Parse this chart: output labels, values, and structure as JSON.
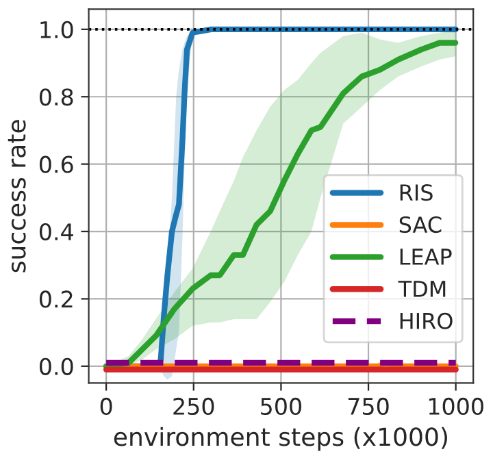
{
  "chart_data": {
    "type": "line",
    "xlabel": "environment steps (x1000)",
    "ylabel": "success rate",
    "xlim": [
      -50,
      1050
    ],
    "ylim": [
      -0.05,
      1.06
    ],
    "xticks": [
      0,
      250,
      500,
      750,
      1000
    ],
    "yticks": [
      {
        "value": 0,
        "label": "0.0"
      },
      {
        "value": 0.2,
        "label": "0.2"
      },
      {
        "value": 0.4,
        "label": "0.4"
      },
      {
        "value": 0.6,
        "label": "0.6"
      },
      {
        "value": 0.8,
        "label": "0.8"
      },
      {
        "value": 1.0,
        "label": "1.0"
      }
    ],
    "grid": true,
    "legend": "bottom right",
    "marker": "none",
    "ref_lines": [
      {
        "axis": "y",
        "value": 1.0,
        "color": "#000000",
        "line_style": "dotted"
      }
    ],
    "series": [
      {
        "name": "RIS",
        "color": "#1f77b4",
        "line_style": "solid",
        "x": [
          0,
          150,
          156,
          165,
          175,
          188,
          200,
          208,
          218,
          224,
          231,
          247,
          300,
          500,
          750,
          1000
        ],
        "values": [
          0,
          0,
          0.02,
          0.15,
          0.27,
          0.4,
          0.45,
          0.48,
          0.67,
          0.81,
          0.94,
          0.99,
          1.0,
          1.0,
          1.0,
          1.0
        ],
        "lower": [
          0,
          0,
          -0.01,
          -0.03,
          -0.04,
          -0.03,
          0.05,
          0.1,
          0.38,
          0.6,
          0.81,
          0.99,
          1.0,
          1.0,
          1.0,
          0.99
        ],
        "upper": [
          0,
          0,
          0.08,
          0.2,
          0.3,
          0.5,
          0.8,
          0.88,
          0.94,
          0.96,
          0.98,
          1.0,
          1.0,
          1.0,
          1.0,
          1.0
        ]
      },
      {
        "name": "SAC",
        "color": "#ff7f0e",
        "line_style": "solid",
        "x": [
          0,
          780,
          800,
          820,
          1000
        ],
        "values": [
          0,
          0,
          0.01,
          0,
          0
        ]
      },
      {
        "name": "LEAP",
        "color": "#2ca02c",
        "line_style": "solid",
        "x": [
          0,
          64,
          103,
          142,
          195,
          247,
          299,
          325,
          365,
          391,
          430,
          469,
          509,
          548,
          587,
          613,
          678,
          731,
          783,
          835,
          901,
          954,
          999
        ],
        "values": [
          0,
          0.01,
          0.05,
          0.09,
          0.17,
          0.23,
          0.27,
          0.27,
          0.33,
          0.33,
          0.42,
          0.46,
          0.55,
          0.63,
          0.7,
          0.71,
          0.81,
          0.86,
          0.88,
          0.91,
          0.94,
          0.96,
          0.96
        ],
        "lower": [
          0,
          0,
          0.02,
          0.05,
          0.08,
          0.12,
          0.13,
          0.13,
          0.14,
          0.14,
          0.14,
          0.19,
          0.25,
          0.33,
          0.4,
          0.5,
          0.72,
          0.77,
          0.82,
          0.86,
          0.89,
          0.91,
          0.92
        ],
        "upper": [
          0,
          0.03,
          0.08,
          0.14,
          0.22,
          0.29,
          0.4,
          0.46,
          0.55,
          0.62,
          0.7,
          0.77,
          0.82,
          0.85,
          0.9,
          0.93,
          0.98,
          0.99,
          0.97,
          0.96,
          0.98,
          0.99,
          1.0
        ]
      },
      {
        "name": "TDM",
        "color": "#d62728",
        "line_style": "solid",
        "x": [
          0,
          1000
        ],
        "values": [
          -0.01,
          -0.01
        ]
      },
      {
        "name": "HIRO",
        "color": "#800080",
        "line_style": "dashed",
        "x": [
          0,
          1000
        ],
        "values": [
          0.01,
          0.01
        ]
      }
    ]
  }
}
